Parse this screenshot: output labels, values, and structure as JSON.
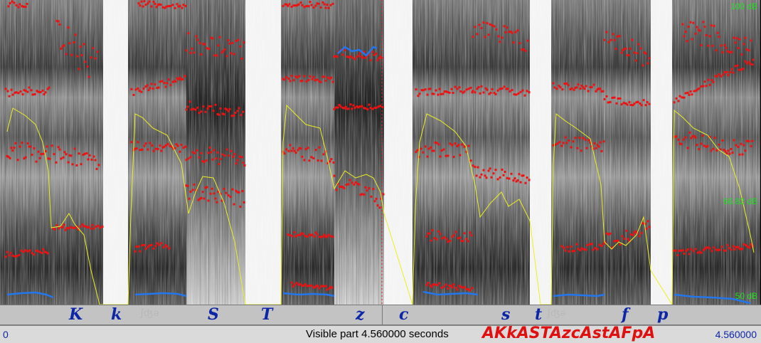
{
  "db_scale": {
    "top": "100 dB",
    "mid": "66.82 dB",
    "bottom": "50 dB"
  },
  "tier_symbols": [
    "K",
    "k",
    "S",
    "T",
    "z",
    "c",
    "s",
    "t",
    "f",
    "p"
  ],
  "tier_ghosts": [
    "ʃʤə",
    "ʃʤə"
  ],
  "status": {
    "start_time": "0",
    "visible_part": "Visible part 4.560000 seconds",
    "transcription": "AKkASTAzcAstAFpA",
    "end_time": "4.560000"
  },
  "colors": {
    "formant_dots": "#ee1111",
    "intensity_curve": "#eeee22",
    "pitch_curve": "#2277ee",
    "tier_text": "#0d26a8",
    "transcription_text": "#e01010",
    "db_labels": "#22dd22"
  }
}
